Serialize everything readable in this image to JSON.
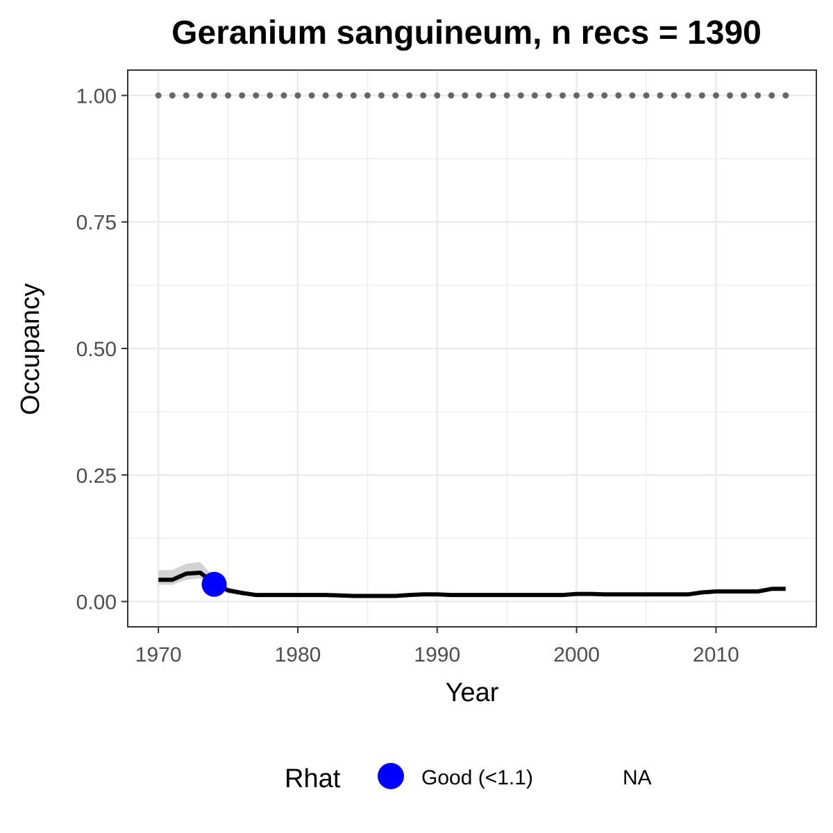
{
  "chart_data": {
    "type": "line",
    "title": "Geranium sanguineum, n recs = 1390",
    "xlabel": "Year",
    "ylabel": "Occupancy",
    "xlim": [
      1967.8,
      2017.2
    ],
    "ylim": [
      -0.05,
      1.05
    ],
    "x_ticks": [
      1970,
      1980,
      1990,
      2000,
      2010
    ],
    "x_tick_labels": [
      "1970",
      "1980",
      "1990",
      "2000",
      "2010"
    ],
    "y_ticks": [
      0,
      0.25,
      0.5,
      0.75,
      1.0
    ],
    "y_tick_labels": [
      "0.00",
      "0.25",
      "0.50",
      "0.75",
      "1.00"
    ],
    "grid": true,
    "series": [
      {
        "role": "mean",
        "x": [
          1970,
          1971,
          1972,
          1973,
          1974,
          1975,
          1976,
          1977,
          1978,
          1979,
          1980,
          1981,
          1982,
          1983,
          1984,
          1985,
          1986,
          1987,
          1988,
          1989,
          1990,
          1991,
          1992,
          1993,
          1994,
          1995,
          1996,
          1997,
          1998,
          1999,
          2000,
          2001,
          2002,
          2003,
          2004,
          2005,
          2006,
          2007,
          2008,
          2009,
          2010,
          2011,
          2012,
          2013,
          2014,
          2015
        ],
        "y": [
          0.043,
          0.043,
          0.055,
          0.057,
          0.036,
          0.022,
          0.017,
          0.013,
          0.013,
          0.013,
          0.013,
          0.013,
          0.013,
          0.012,
          0.011,
          0.011,
          0.011,
          0.011,
          0.013,
          0.014,
          0.014,
          0.013,
          0.013,
          0.013,
          0.013,
          0.013,
          0.013,
          0.013,
          0.013,
          0.013,
          0.015,
          0.015,
          0.014,
          0.014,
          0.014,
          0.014,
          0.014,
          0.014,
          0.014,
          0.018,
          0.02,
          0.02,
          0.02,
          0.02,
          0.025,
          0.025
        ],
        "lower": [
          0.033,
          0.033,
          0.043,
          0.046,
          0.027,
          0.016,
          0.012,
          0.011,
          0.011,
          0.011,
          0.011,
          0.011,
          0.011,
          0.01,
          0.009,
          0.009,
          0.009,
          0.009,
          0.011,
          0.012,
          0.012,
          0.011,
          0.011,
          0.011,
          0.011,
          0.011,
          0.011,
          0.011,
          0.011,
          0.011,
          0.013,
          0.013,
          0.012,
          0.012,
          0.012,
          0.012,
          0.012,
          0.012,
          0.012,
          0.016,
          0.018,
          0.018,
          0.018,
          0.018,
          0.023,
          0.023
        ],
        "upper": [
          0.062,
          0.062,
          0.075,
          0.078,
          0.048,
          0.028,
          0.022,
          0.015,
          0.015,
          0.015,
          0.015,
          0.015,
          0.015,
          0.014,
          0.013,
          0.013,
          0.013,
          0.013,
          0.015,
          0.016,
          0.016,
          0.015,
          0.015,
          0.015,
          0.015,
          0.015,
          0.015,
          0.015,
          0.015,
          0.015,
          0.017,
          0.017,
          0.016,
          0.016,
          0.016,
          0.016,
          0.016,
          0.016,
          0.016,
          0.02,
          0.022,
          0.022,
          0.022,
          0.022,
          0.027,
          0.027
        ]
      },
      {
        "role": "reference",
        "x": [
          1970,
          1971,
          1972,
          1973,
          1974,
          1975,
          1976,
          1977,
          1978,
          1979,
          1980,
          1981,
          1982,
          1983,
          1984,
          1985,
          1986,
          1987,
          1988,
          1989,
          1990,
          1991,
          1992,
          1993,
          1994,
          1995,
          1996,
          1997,
          1998,
          1999,
          2000,
          2001,
          2002,
          2003,
          2004,
          2005,
          2006,
          2007,
          2008,
          2009,
          2010,
          2011,
          2012,
          2013,
          2014,
          2015
        ],
        "y": [
          1,
          1,
          1,
          1,
          1,
          1,
          1,
          1,
          1,
          1,
          1,
          1,
          1,
          1,
          1,
          1,
          1,
          1,
          1,
          1,
          1,
          1,
          1,
          1,
          1,
          1,
          1,
          1,
          1,
          1,
          1,
          1,
          1,
          1,
          1,
          1,
          1,
          1,
          1,
          1,
          1,
          1,
          1,
          1,
          1,
          1
        ]
      }
    ],
    "rhat_points": [
      {
        "x": 1974,
        "y": 0.034,
        "category": "Good (<1.1)"
      }
    ],
    "legend": {
      "title": "Rhat",
      "position": "bottom",
      "items": [
        {
          "label": "Good (<1.1)",
          "color": "#0000ff",
          "marker": "circle"
        },
        {
          "label": "NA",
          "color": "",
          "marker": "none"
        }
      ]
    },
    "colors": {
      "mean_line": "#000000",
      "ribbon": "#d3d3d3",
      "reference_points": "#666666",
      "grid": "#ebebeb",
      "panel_border": "#333333"
    }
  }
}
